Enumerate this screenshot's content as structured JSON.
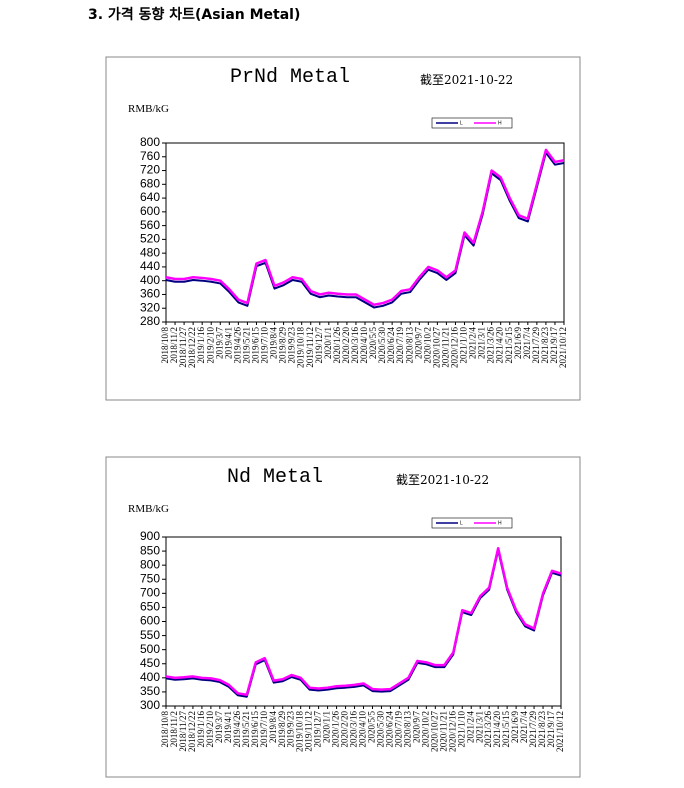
{
  "heading": "3. 가격 동향 차트(Asian Metal)",
  "chart_data": [
    {
      "type": "line",
      "title": "PrNd Metal",
      "subtitle": "截至2021-10-22",
      "y_label": "RMB/kG",
      "categories": [
        "2018/10/8",
        "2018/11/2",
        "2018/11/27",
        "2018/12/22",
        "2019/1/16",
        "2019/2/10",
        "2019/3/7",
        "2019/4/1",
        "2019/4/26",
        "2019/5/21",
        "2019/6/15",
        "2019/7/10",
        "2019/8/4",
        "2019/8/29",
        "2019/9/23",
        "2019/10/18",
        "2019/11/12",
        "2019/12/7",
        "2020/1/1",
        "2020/1/26",
        "2020/2/20",
        "2020/3/16",
        "2020/4/10",
        "2020/5/5",
        "2020/5/30",
        "2020/6/24",
        "2020/7/19",
        "2020/8/13",
        "2020/9/7",
        "2020/10/2",
        "2020/10/27",
        "2020/11/21",
        "2020/12/16",
        "2021/1/10",
        "2021/2/4",
        "2021/3/1",
        "2021/3/26",
        "2021/4/20",
        "2021/5/15",
        "2021/6/9",
        "2021/7/4",
        "2021/7/29",
        "2021/8/23",
        "2021/9/17",
        "2021/10/12"
      ],
      "series": [
        {
          "name": "L",
          "color": "#000080",
          "values": [
            402,
            397,
            397,
            402,
            400,
            397,
            392,
            367,
            337,
            327,
            442,
            452,
            377,
            387,
            402,
            397,
            362,
            352,
            357,
            354,
            352,
            352,
            337,
            322,
            327,
            337,
            362,
            367,
            402,
            432,
            422,
            402,
            422,
            532,
            502,
            592,
            712,
            692,
            632,
            582,
            572,
            672,
            772,
            737,
            742
          ]
        },
        {
          "name": "H",
          "color": "#ff00ff",
          "values": [
            410,
            405,
            405,
            410,
            408,
            405,
            400,
            375,
            345,
            335,
            450,
            460,
            385,
            395,
            410,
            405,
            370,
            360,
            365,
            362,
            360,
            360,
            345,
            330,
            335,
            345,
            370,
            375,
            410,
            440,
            430,
            410,
            430,
            540,
            510,
            600,
            720,
            700,
            640,
            590,
            580,
            680,
            780,
            745,
            750
          ]
        }
      ],
      "ylim": [
        280,
        800
      ],
      "yticks": [
        280,
        320,
        360,
        400,
        440,
        480,
        520,
        560,
        600,
        640,
        680,
        720,
        760,
        800
      ],
      "legend": "top-right"
    },
    {
      "type": "line",
      "title": "Nd Metal",
      "subtitle": "截至2021-10-22",
      "y_label": "RMB/kG",
      "categories": [
        "2018/10/8",
        "2018/11/2",
        "2018/11/27",
        "2018/12/22",
        "2019/1/16",
        "2019/2/10",
        "2019/3/7",
        "2019/4/1",
        "2019/4/26",
        "2019/5/21",
        "2019/6/15",
        "2019/7/10",
        "2019/8/4",
        "2019/8/29",
        "2019/9/23",
        "2019/10/18",
        "2019/11/12",
        "2019/12/7",
        "2020/1/1",
        "2020/1/26",
        "2020/2/20",
        "2020/3/16",
        "2020/4/10",
        "2020/5/5",
        "2020/5/30",
        "2020/6/24",
        "2020/7/19",
        "2020/8/13",
        "2020/9/7",
        "2020/10/2",
        "2020/10/27",
        "2020/11/21",
        "2020/12/16",
        "2021/1/10",
        "2021/2/4",
        "2021/3/1",
        "2021/3/26",
        "2021/4/20",
        "2021/5/15",
        "2021/6/9",
        "2021/7/4",
        "2021/7/29",
        "2021/8/23",
        "2021/9/17",
        "2021/10/12"
      ],
      "series": [
        {
          "name": "L",
          "color": "#000080",
          "values": [
            398,
            393,
            395,
            398,
            393,
            391,
            385,
            368,
            338,
            333,
            448,
            463,
            383,
            388,
            403,
            393,
            358,
            355,
            358,
            363,
            365,
            368,
            373,
            353,
            351,
            353,
            373,
            393,
            453,
            448,
            438,
            438,
            483,
            633,
            623,
            683,
            713,
            853,
            713,
            633,
            583,
            568,
            693,
            773,
            763
          ]
        },
        {
          "name": "H",
          "color": "#ff00ff",
          "values": [
            405,
            400,
            402,
            405,
            400,
            398,
            392,
            375,
            345,
            340,
            455,
            470,
            390,
            395,
            410,
            400,
            365,
            362,
            365,
            370,
            372,
            375,
            380,
            360,
            358,
            360,
            380,
            400,
            460,
            455,
            445,
            445,
            490,
            640,
            630,
            690,
            720,
            860,
            720,
            640,
            590,
            575,
            700,
            780,
            770
          ]
        }
      ],
      "ylim": [
        300,
        900
      ],
      "yticks": [
        300,
        350,
        400,
        450,
        500,
        550,
        600,
        650,
        700,
        750,
        800,
        850,
        900
      ],
      "legend": "top-right"
    }
  ]
}
